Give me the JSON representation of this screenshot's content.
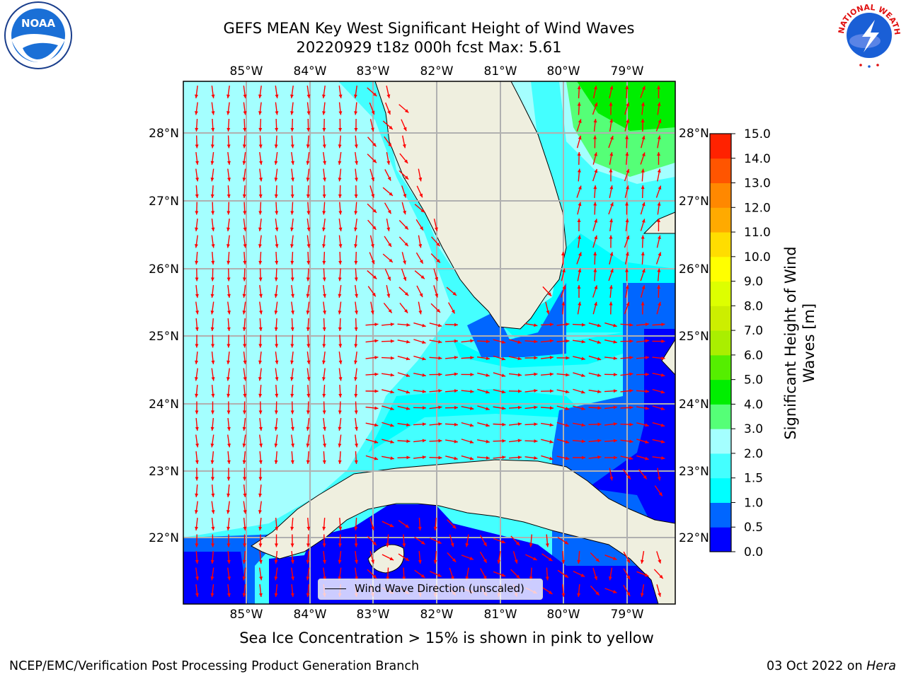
{
  "title": {
    "line1": "GEFS MEAN Key West Significant Height of Wind Waves",
    "line2": "20220929 t18z 000h fcst   Max: 5.61"
  },
  "map": {
    "lon_labels": [
      "85°W",
      "84°W",
      "83°W",
      "82°W",
      "81°W",
      "80°W",
      "79°W"
    ],
    "lat_labels": [
      "28°N",
      "27°N",
      "26°N",
      "25°N",
      "24°N",
      "23°N",
      "22°N"
    ],
    "land_color": "#efefdf",
    "legend_label": "Wind Wave Direction (unscaled)",
    "arrow_color": "#ff0000"
  },
  "colorbar": {
    "title": "Significant Height of Wind Waves [m]",
    "title_line1": "Significant Height of Wind",
    "title_line2": "Waves [m]",
    "tick_labels": [
      "15.0",
      "14.0",
      "13.0",
      "12.0",
      "11.0",
      "10.0",
      "9.0",
      "8.0",
      "7.0",
      "6.0",
      "5.0",
      "4.0",
      "3.0",
      "2.0",
      "1.5",
      "1.0",
      "0.5",
      "0.0"
    ],
    "levels": [
      0,
      0.5,
      1,
      1.5,
      2,
      3,
      4,
      5,
      6,
      7,
      8,
      9,
      10,
      11,
      12,
      13,
      14,
      15
    ],
    "colors": [
      "#0000ff",
      "#0066ff",
      "#00ffff",
      "#44ffff",
      "#a4ffff",
      "#55ff77",
      "#00ee00",
      "#55ee00",
      "#aaee00",
      "#ccee00",
      "#ddff00",
      "#ffff00",
      "#ffdd00",
      "#ffaa00",
      "#ff8800",
      "#ff5500",
      "#ff2200"
    ]
  },
  "footer": {
    "note": "Sea Ice Concentration > 15% is shown in pink to yellow",
    "credit": "NCEP/EMC/Verification Post Processing Product Generation Branch",
    "date": "03 Oct 2022 on ",
    "host": "Hera"
  },
  "logos": {
    "noaa_text": "NOAA",
    "nws_text": "NATIONAL WEATHER SERVICE"
  }
}
